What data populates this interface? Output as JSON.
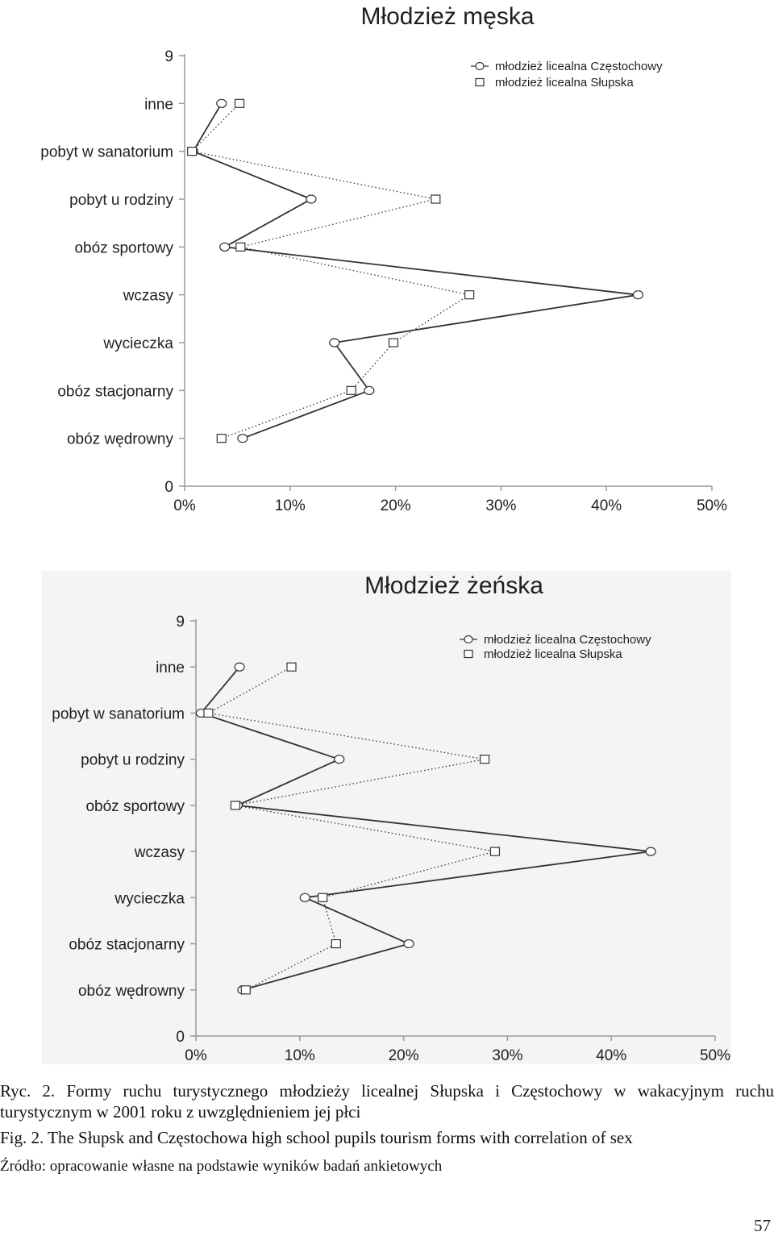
{
  "chart_data": [
    {
      "type": "line",
      "orientation": "horizontal-categories",
      "title": "Młodzież męska",
      "categories": [
        "inne",
        "pobyt w sanatorium",
        "pobyt u rodziny",
        "obóz sportowy",
        "wczasy",
        "wycieczka",
        "obóz stacjonarny",
        "obóz wędrowny"
      ],
      "y_top_tick": "9",
      "y_bottom_tick": "0",
      "x_ticks": [
        "0%",
        "10%",
        "20%",
        "30%",
        "40%",
        "50%"
      ],
      "xlim": [
        0,
        50
      ],
      "series": [
        {
          "name": "młodzież licealna Częstochowy",
          "marker": "circle",
          "line": "solid",
          "values": [
            3.5,
            0.8,
            12.0,
            3.8,
            43.0,
            14.2,
            17.5,
            5.5
          ]
        },
        {
          "name": "młodzież licealna Słupska",
          "marker": "square",
          "line": "dotted",
          "values": [
            5.2,
            0.7,
            23.8,
            5.3,
            27.0,
            19.8,
            15.8,
            3.5
          ]
        }
      ],
      "legend_position": "top-right",
      "grid": false
    },
    {
      "type": "line",
      "orientation": "horizontal-categories",
      "title": "Młodzież żeńska",
      "categories": [
        "inne",
        "pobyt w sanatorium",
        "pobyt u rodziny",
        "obóz sportowy",
        "wczasy",
        "wycieczka",
        "obóz stacjonarny",
        "obóz wędrowny"
      ],
      "y_top_tick": "9",
      "y_bottom_tick": "0",
      "x_ticks": [
        "0%",
        "10%",
        "20%",
        "30%",
        "40%",
        "50%"
      ],
      "xlim": [
        0,
        50
      ],
      "series": [
        {
          "name": "młodzież licealna Częstochowy",
          "marker": "circle",
          "line": "solid",
          "values": [
            4.2,
            0.5,
            13.8,
            4.0,
            43.8,
            10.5,
            20.5,
            4.5
          ]
        },
        {
          "name": "młodzież licealna Słupska",
          "marker": "square",
          "line": "dotted",
          "values": [
            9.2,
            1.2,
            27.8,
            3.8,
            28.8,
            12.2,
            13.5,
            4.8
          ]
        }
      ],
      "legend_position": "top-right",
      "grid": false
    }
  ],
  "captions": {
    "polish": "Ryc. 2. Formy ruchu turystycznego młodzieży licealnej Słupska i Częstochowy w wakacyjnym ruchu turystycznym w 2001 roku z uwzględnieniem jej płci",
    "english": "Fig. 2. The Słupsk and Częstochowa high school pupils tourism forms with correlation of sex",
    "source": "Źródło: opracowanie własne na podstawie wyników badań ankietowych"
  },
  "page_number": "57",
  "colors": {
    "line": "#333333",
    "axis": "#9a9a9a",
    "marker_fill": "#ffffff"
  }
}
